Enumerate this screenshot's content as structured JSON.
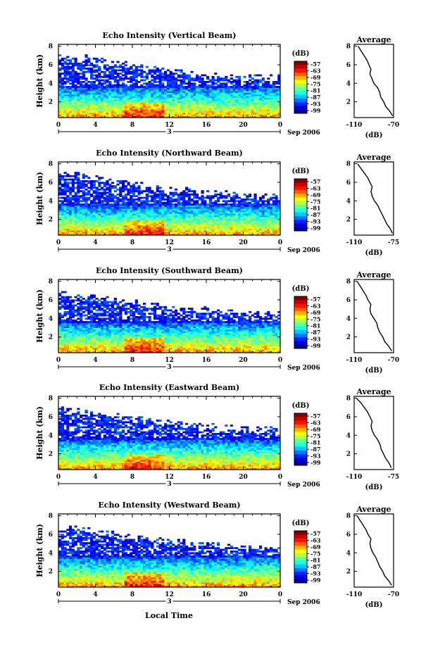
{
  "figure": {
    "xlabel": "Local Time",
    "date_label": "Sep 2006",
    "date_marker": "3",
    "ylabel": "Height (km)",
    "colorbar_unit": "(dB)",
    "colorbar_ticks": [
      "-57",
      "-63",
      "-69",
      "-75",
      "-81",
      "-87",
      "-93",
      "-99"
    ],
    "avg_title": "Average",
    "avg_xlabel": "(dB)"
  },
  "chart_data": [
    {
      "type": "heatmap",
      "title": "Echo Intensity (Vertical Beam)",
      "x_ticks": [
        "0",
        "4",
        "8",
        "12",
        "16",
        "20",
        "0"
      ],
      "y_ticks": [
        "2",
        "4",
        "6",
        "8"
      ],
      "xlim": [
        0,
        24
      ],
      "ylim": [
        0.3,
        8.2
      ],
      "colorbar_range": [
        -99,
        -57
      ],
      "echo_top_km": [
        6.7,
        6.4,
        6.0,
        5.6,
        5.2,
        4.8,
        4.6,
        4.5,
        4.4
      ],
      "avg_profile": {
        "xlim": [
          -110,
          -70
        ],
        "x_ticks": [
          "-110",
          "-70"
        ],
        "y_ticks": [
          "2",
          "4",
          "6",
          "8"
        ],
        "heights": [
          0.5,
          1.0,
          1.5,
          2.0,
          2.5,
          3.0,
          3.5,
          4.0,
          4.5,
          5.0,
          5.5,
          6.0,
          6.5,
          7.0,
          7.5,
          8.0
        ],
        "values": [
          -71,
          -74,
          -78,
          -80,
          -83,
          -84,
          -86,
          -90,
          -92,
          -94,
          -93,
          -95,
          -97,
          -100,
          -103,
          -106
        ]
      }
    },
    {
      "type": "heatmap",
      "title": "Echo Intensity (Northward Beam)",
      "x_ticks": [
        "0",
        "4",
        "8",
        "12",
        "16",
        "20",
        "0"
      ],
      "y_ticks": [
        "2",
        "4",
        "6",
        "8"
      ],
      "xlim": [
        0,
        24
      ],
      "ylim": [
        0.3,
        8.2
      ],
      "colorbar_range": [
        -99,
        -57
      ],
      "echo_top_km": [
        6.6,
        6.3,
        5.9,
        5.5,
        5.1,
        4.7,
        4.5,
        4.4,
        4.3
      ],
      "avg_profile": {
        "xlim": [
          -110,
          -75
        ],
        "x_ticks": [
          "-110",
          "-75"
        ],
        "y_ticks": [
          "2",
          "4",
          "6",
          "8"
        ],
        "heights": [
          0.5,
          1.0,
          1.5,
          2.0,
          2.5,
          3.0,
          3.5,
          4.0,
          4.5,
          5.0,
          5.5,
          6.0,
          6.5,
          7.0,
          7.5,
          8.0
        ],
        "values": [
          -76,
          -78,
          -81,
          -83,
          -85,
          -87,
          -89,
          -92,
          -94,
          -95,
          -94,
          -96,
          -98,
          -101,
          -104,
          -107
        ]
      }
    },
    {
      "type": "heatmap",
      "title": "Echo Intensity (Southward Beam)",
      "x_ticks": [
        "0",
        "4",
        "8",
        "12",
        "16",
        "20",
        "0"
      ],
      "y_ticks": [
        "2",
        "4",
        "6",
        "8"
      ],
      "xlim": [
        0,
        24
      ],
      "ylim": [
        0.3,
        8.2
      ],
      "colorbar_range": [
        -99,
        -57
      ],
      "echo_top_km": [
        6.5,
        6.2,
        5.8,
        5.4,
        5.0,
        4.7,
        4.5,
        4.3,
        4.2
      ],
      "avg_profile": {
        "xlim": [
          -110,
          -70
        ],
        "x_ticks": [
          "-110",
          "-70"
        ],
        "y_ticks": [
          "2",
          "4",
          "6",
          "8"
        ],
        "heights": [
          0.5,
          1.0,
          1.5,
          2.0,
          2.5,
          3.0,
          3.5,
          4.0,
          4.5,
          5.0,
          5.5,
          6.0,
          6.5,
          7.0,
          7.5,
          8.0
        ],
        "values": [
          -72,
          -75,
          -79,
          -81,
          -84,
          -86,
          -87,
          -90,
          -93,
          -94,
          -93,
          -96,
          -98,
          -101,
          -104,
          -107
        ]
      }
    },
    {
      "type": "heatmap",
      "title": "Echo Intensity (Eastward Beam)",
      "x_ticks": [
        "0",
        "4",
        "8",
        "12",
        "16",
        "20",
        "0"
      ],
      "y_ticks": [
        "2",
        "4",
        "6",
        "8"
      ],
      "xlim": [
        0,
        24
      ],
      "ylim": [
        0.3,
        8.2
      ],
      "colorbar_range": [
        -99,
        -57
      ],
      "echo_top_km": [
        6.6,
        6.3,
        5.9,
        5.5,
        5.1,
        4.8,
        4.6,
        4.4,
        4.3
      ],
      "avg_profile": {
        "xlim": [
          -110,
          -75
        ],
        "x_ticks": [
          "-110",
          "-75"
        ],
        "y_ticks": [
          "2",
          "4",
          "6",
          "8"
        ],
        "heights": [
          0.5,
          1.0,
          1.5,
          2.0,
          2.5,
          3.0,
          3.5,
          4.0,
          4.5,
          5.0,
          5.5,
          6.0,
          6.5,
          7.0,
          7.5,
          8.0
        ],
        "values": [
          -77,
          -79,
          -82,
          -84,
          -86,
          -87,
          -89,
          -92,
          -94,
          -95,
          -94,
          -96,
          -98,
          -101,
          -104,
          -108
        ]
      }
    },
    {
      "type": "heatmap",
      "title": "Echo Intensity (Westward Beam)",
      "x_ticks": [
        "0",
        "4",
        "8",
        "12",
        "16",
        "20",
        "0"
      ],
      "y_ticks": [
        "2",
        "4",
        "6",
        "8"
      ],
      "xlim": [
        0,
        24
      ],
      "ylim": [
        0.3,
        8.2
      ],
      "colorbar_range": [
        -99,
        -57
      ],
      "echo_top_km": [
        6.6,
        6.2,
        5.8,
        5.4,
        5.0,
        4.7,
        4.5,
        4.4,
        4.3
      ],
      "avg_profile": {
        "xlim": [
          -110,
          -70
        ],
        "x_ticks": [
          "-110",
          "-70"
        ],
        "y_ticks": [
          "2",
          "4",
          "6",
          "8"
        ],
        "heights": [
          0.5,
          1.0,
          1.5,
          2.0,
          2.5,
          3.0,
          3.5,
          4.0,
          4.5,
          5.0,
          5.5,
          6.0,
          6.5,
          7.0,
          7.5,
          8.0
        ],
        "values": [
          -72,
          -75,
          -79,
          -81,
          -84,
          -86,
          -88,
          -91,
          -93,
          -94,
          -93,
          -96,
          -98,
          -101,
          -104,
          -107
        ]
      }
    }
  ]
}
